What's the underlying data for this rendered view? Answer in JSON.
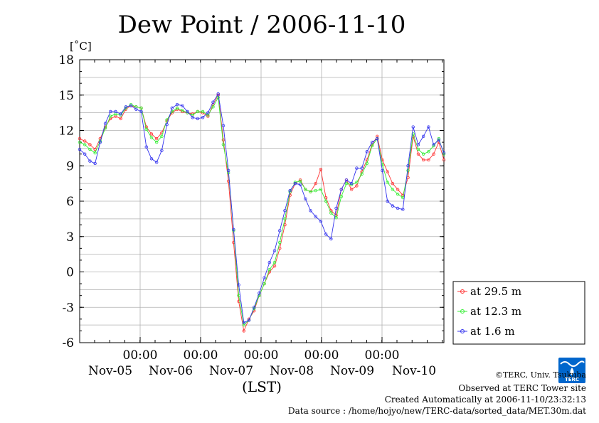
{
  "chart_data": {
    "type": "line",
    "title": "Dew Point / 2006-11-10",
    "ylabel": "[˚C]",
    "xlabel": "(LST)",
    "ylim": [
      -6,
      18
    ],
    "yticks": [
      "18",
      "15",
      "12",
      "9",
      "6",
      "3",
      "0",
      "-3",
      "-6"
    ],
    "xtime_labels": [
      "00:00",
      "00:00",
      "00:00",
      "00:00",
      "00:00"
    ],
    "xdate_labels": [
      "Nov-05",
      "Nov-06",
      "Nov-07",
      "Nov-08",
      "Nov-09",
      "Nov-10"
    ],
    "grid": true,
    "legend_position": "right",
    "series": [
      {
        "name": "at 29.5 m",
        "color": "#ff3333",
        "values": [
          11.3,
          11.1,
          10.8,
          10.4,
          11.3,
          12.3,
          13.0,
          13.2,
          13.0,
          13.8,
          14.1,
          14.0,
          13.9,
          12.3,
          11.7,
          11.3,
          11.8,
          12.8,
          13.5,
          13.8,
          13.6,
          13.5,
          13.4,
          13.6,
          13.5,
          13.2,
          14.2,
          15.0,
          11.2,
          7.7,
          2.5,
          -2.5,
          -5.0,
          -4.0,
          -3.3,
          -2.0,
          -1.0,
          0.0,
          0.5,
          2.0,
          4.0,
          6.5,
          7.5,
          7.8,
          7.0,
          6.8,
          7.5,
          8.7,
          6.3,
          5.2,
          4.8,
          7.0,
          7.8,
          7.0,
          7.3,
          8.5,
          9.5,
          10.8,
          11.5,
          9.5,
          8.5,
          7.5,
          7.0,
          6.5,
          8.0,
          11.5,
          10.0,
          9.5,
          9.5,
          10.0,
          11.0,
          9.5
        ]
      },
      {
        "name": "at 12.3 m",
        "color": "#33ee33",
        "values": [
          11.0,
          10.8,
          10.4,
          10.1,
          11.1,
          12.2,
          13.2,
          13.4,
          13.3,
          13.9,
          14.2,
          14.0,
          13.9,
          12.1,
          11.4,
          11.0,
          11.5,
          12.9,
          13.6,
          13.9,
          13.7,
          13.5,
          13.3,
          13.6,
          13.6,
          13.3,
          14.0,
          14.8,
          10.8,
          8.4,
          3.5,
          -2.0,
          -4.5,
          -4.1,
          -3.1,
          -2.0,
          -1.0,
          0.2,
          0.8,
          2.5,
          4.5,
          6.8,
          7.6,
          7.7,
          7.0,
          6.8,
          6.9,
          7.0,
          6.0,
          5.0,
          4.6,
          6.4,
          7.5,
          7.4,
          7.6,
          8.3,
          9.2,
          10.7,
          11.3,
          9.1,
          7.6,
          7.0,
          6.6,
          6.3,
          8.6,
          11.7,
          10.4,
          10.0,
          10.2,
          10.7,
          11.3,
          10.0
        ]
      },
      {
        "name": "at 1.6 m",
        "color": "#3333ee",
        "values": [
          10.4,
          10.0,
          9.4,
          9.2,
          11.0,
          12.6,
          13.6,
          13.6,
          13.4,
          14.0,
          14.1,
          13.8,
          13.6,
          10.6,
          9.6,
          9.3,
          10.3,
          12.5,
          13.9,
          14.2,
          14.1,
          13.6,
          13.1,
          13.0,
          13.1,
          13.5,
          14.4,
          15.1,
          12.4,
          8.6,
          3.6,
          -1.1,
          -4.3,
          -4.1,
          -3.0,
          -1.8,
          -0.5,
          0.8,
          1.8,
          3.5,
          5.2,
          6.9,
          7.5,
          7.4,
          6.2,
          5.2,
          4.7,
          4.3,
          3.2,
          2.8,
          5.4,
          7.0,
          7.8,
          7.5,
          8.8,
          8.8,
          10.2,
          11.0,
          11.3,
          8.6,
          6.0,
          5.6,
          5.4,
          5.3,
          9.0,
          12.3,
          10.8,
          11.5,
          12.3,
          10.8,
          11.2,
          10.1
        ]
      }
    ]
  },
  "credits": {
    "copyright": "©TERC, Univ. Tsukuba",
    "site": "Observed at TERC Tower site",
    "created": "Created Automatically at 2006-11-10/23:32:13",
    "source": "Data source : /home/hojyo/new/TERC-data/sorted_data/MET.30m.dat"
  },
  "logo": {
    "text": "TERC",
    "color": "#0066cc"
  }
}
